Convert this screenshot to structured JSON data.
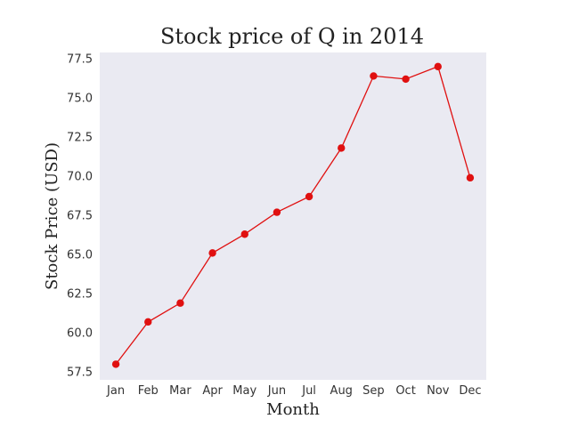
{
  "chart_data": {
    "type": "line",
    "title": "Stock price of Q in 2014",
    "xlabel": "Month",
    "ylabel": "Stock Price (USD)",
    "categories": [
      "Jan",
      "Feb",
      "Mar",
      "Apr",
      "May",
      "Jun",
      "Jul",
      "Aug",
      "Sep",
      "Oct",
      "Nov",
      "Dec"
    ],
    "series": [
      {
        "values": [
          58.0,
          60.7,
          61.9,
          65.1,
          66.3,
          67.7,
          68.7,
          71.8,
          76.4,
          76.2,
          77.0,
          69.9
        ],
        "color": "#e01010"
      }
    ],
    "yticks": [
      "57.5",
      "60.0",
      "62.5",
      "65.0",
      "67.5",
      "70.0",
      "72.5",
      "75.0",
      "77.5"
    ],
    "ylim": [
      57.0,
      77.9
    ],
    "grid": false,
    "legend": "none",
    "background": "#eaeaf2"
  }
}
